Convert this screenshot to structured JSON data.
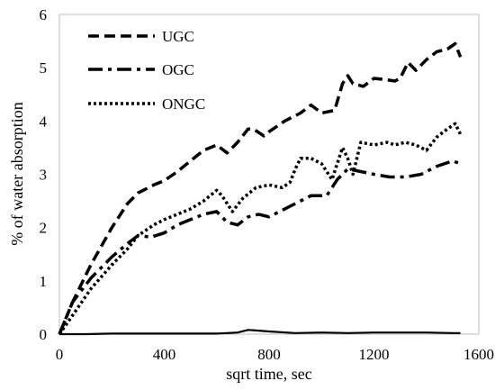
{
  "chart_data": {
    "type": "line",
    "xlabel": "sqrt time, sec",
    "ylabel": "% of water absorption",
    "xlim": [
      0,
      1600
    ],
    "ylim": [
      0,
      6
    ],
    "xticks": [
      "0",
      "400",
      "800",
      "1200",
      "1600"
    ],
    "yticks": [
      "0",
      "1",
      "2",
      "3",
      "4",
      "5",
      "6"
    ],
    "grid": false,
    "legend": "top-left",
    "series": [
      {
        "name": "UGC",
        "style": "dash",
        "color": "#000000",
        "x": [
          0,
          50,
          120,
          200,
          260,
          300,
          360,
          400,
          450,
          500,
          550,
          600,
          640,
          680,
          720,
          740,
          780,
          800,
          860,
          920,
          960,
          1000,
          1050,
          1080,
          1100,
          1120,
          1160,
          1200,
          1240,
          1280,
          1300,
          1330,
          1360,
          1400,
          1440,
          1480,
          1510,
          1530
        ],
        "y": [
          0,
          0.6,
          1.3,
          2.0,
          2.45,
          2.65,
          2.8,
          2.88,
          3.05,
          3.25,
          3.45,
          3.55,
          3.4,
          3.6,
          3.85,
          3.85,
          3.72,
          3.8,
          4.0,
          4.15,
          4.3,
          4.15,
          4.2,
          4.7,
          4.85,
          4.7,
          4.65,
          4.8,
          4.78,
          4.75,
          4.8,
          5.1,
          4.95,
          5.15,
          5.3,
          5.35,
          5.45,
          5.2
        ]
      },
      {
        "name": "OGC",
        "style": "dash-dot",
        "color": "#000000",
        "x": [
          0,
          50,
          120,
          200,
          260,
          300,
          350,
          400,
          450,
          500,
          550,
          600,
          640,
          680,
          720,
          760,
          800,
          880,
          960,
          1020,
          1060,
          1100,
          1150,
          1200,
          1260,
          1320,
          1380,
          1440,
          1500,
          1530
        ],
        "y": [
          0,
          0.6,
          1.05,
          1.45,
          1.7,
          1.85,
          1.82,
          1.9,
          2.05,
          2.15,
          2.25,
          2.3,
          2.1,
          2.05,
          2.2,
          2.25,
          2.2,
          2.4,
          2.6,
          2.6,
          2.9,
          3.1,
          3.05,
          3.0,
          2.95,
          2.95,
          3.0,
          3.15,
          3.25,
          3.2
        ]
      },
      {
        "name": "ONGC",
        "style": "dot",
        "color": "#000000",
        "x": [
          0,
          50,
          120,
          200,
          260,
          300,
          360,
          400,
          450,
          500,
          550,
          600,
          620,
          660,
          700,
          750,
          800,
          850,
          880,
          900,
          920,
          960,
          1000,
          1040,
          1060,
          1080,
          1100,
          1120,
          1150,
          1200,
          1250,
          1280,
          1320,
          1360,
          1400,
          1440,
          1480,
          1510,
          1530
        ],
        "y": [
          0,
          0.35,
          0.85,
          1.3,
          1.6,
          1.85,
          2.05,
          2.15,
          2.25,
          2.35,
          2.5,
          2.7,
          2.6,
          2.3,
          2.55,
          2.75,
          2.8,
          2.75,
          2.85,
          3.1,
          3.3,
          3.3,
          3.2,
          2.9,
          3.2,
          3.5,
          3.3,
          3.0,
          3.6,
          3.55,
          3.6,
          3.55,
          3.6,
          3.55,
          3.45,
          3.7,
          3.85,
          3.95,
          3.75
        ]
      },
      {
        "name": "",
        "style": "solid",
        "color": "#000000",
        "x": [
          0,
          100,
          200,
          300,
          400,
          500,
          600,
          680,
          720,
          750,
          800,
          900,
          1000,
          1100,
          1200,
          1300,
          1400,
          1500,
          1530
        ],
        "y": [
          0,
          0.0,
          0.01,
          0.01,
          0.01,
          0.01,
          0.01,
          0.03,
          0.08,
          0.07,
          0.05,
          0.02,
          0.03,
          0.02,
          0.03,
          0.03,
          0.03,
          0.02,
          0.02
        ]
      }
    ]
  }
}
